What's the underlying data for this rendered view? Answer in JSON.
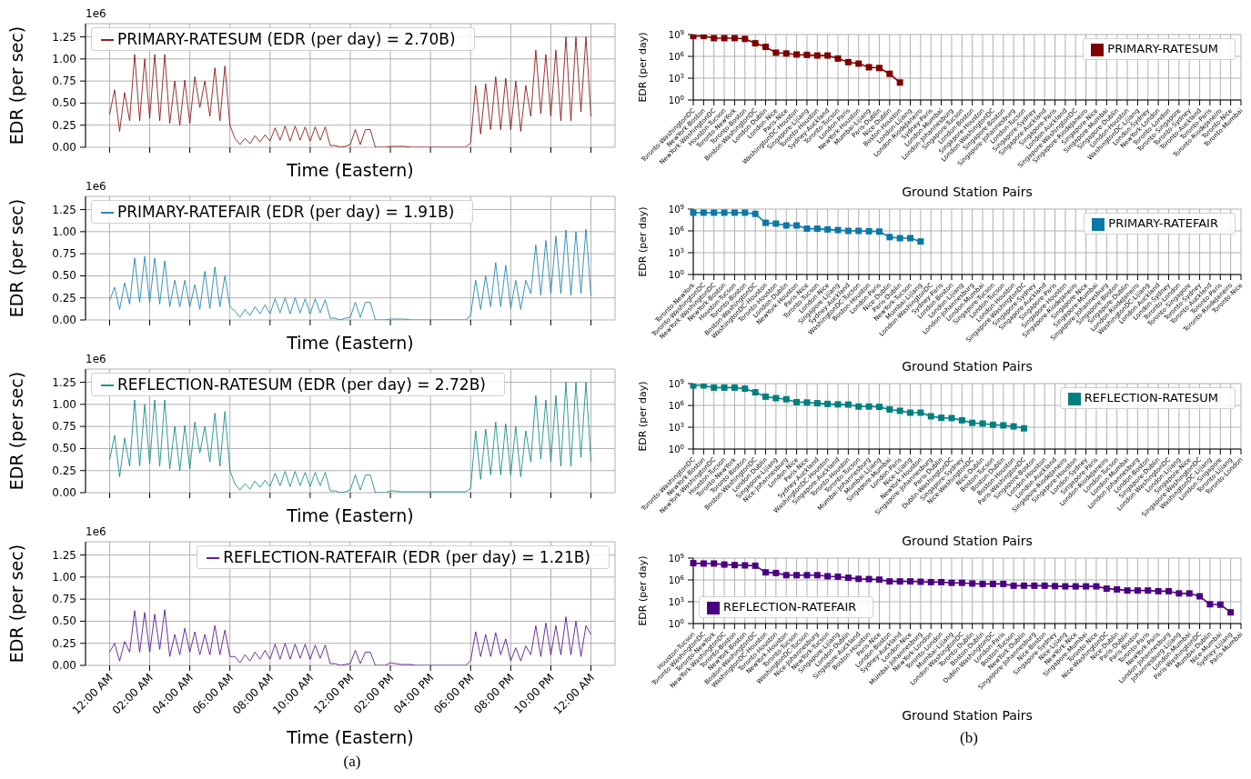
{
  "chart_data": [
    {
      "type": "line",
      "xlabel": "Time (Eastern)",
      "ylabel": "EDR (per sec)",
      "annotations": [
        "1e6"
      ],
      "grid": true,
      "legend": "top left",
      "tick_labels": "y",
      "xlim": [
        -1.2,
        25.2
      ],
      "xticks": [
        {
          "value": 0,
          "label": null
        },
        {
          "value": 2,
          "label": null
        },
        {
          "value": 4,
          "label": null
        },
        {
          "value": 6,
          "label": null
        },
        {
          "value": 8,
          "label": null
        },
        {
          "value": 10,
          "label": null
        },
        {
          "value": 12,
          "label": null
        },
        {
          "value": 14,
          "label": null
        },
        {
          "value": 16,
          "label": null
        },
        {
          "value": 18,
          "label": null
        },
        {
          "value": 20,
          "label": null
        },
        {
          "value": 22,
          "label": null
        },
        {
          "value": 24,
          "label": null
        }
      ],
      "ylim": [
        0,
        1.4
      ],
      "yticks": [
        {
          "value": 0,
          "label": "0.00"
        },
        {
          "value": 0.25,
          "label": "0.25"
        },
        {
          "value": 0.5,
          "label": "0.50"
        },
        {
          "value": 0.75,
          "label": "0.75"
        },
        {
          "value": 1,
          "label": "1.00"
        },
        {
          "value": 1.25,
          "label": "1.25"
        }
      ],
      "x": [
        0,
        0.25,
        0.5,
        0.75,
        1,
        1.25,
        1.5,
        1.75,
        2,
        2.25,
        2.5,
        2.75,
        3,
        3.25,
        3.5,
        3.75,
        4,
        4.25,
        4.5,
        4.75,
        5,
        5.25,
        5.5,
        5.75,
        6,
        6.25,
        6.5,
        6.75,
        7,
        7.25,
        7.5,
        7.75,
        8,
        8.25,
        8.5,
        8.75,
        9,
        9.25,
        9.5,
        9.75,
        10,
        10.25,
        10.5,
        10.75,
        11,
        11.25,
        11.5,
        11.75,
        12,
        12.25,
        12.5,
        12.75,
        13,
        13.25,
        13.5,
        13.75,
        14,
        14.25,
        14.5,
        14.75,
        15,
        15.25,
        15.5,
        15.75,
        16,
        16.25,
        16.5,
        16.75,
        17,
        17.25,
        17.5,
        17.75,
        18,
        18.25,
        18.5,
        18.75,
        19,
        19.25,
        19.5,
        19.75,
        20,
        20.25,
        20.5,
        20.75,
        21,
        21.25,
        21.5,
        21.75,
        22,
        22.25,
        22.5,
        22.75,
        23,
        23.25,
        23.5,
        23.75,
        24
      ],
      "series": [
        {
          "name": "PRIMARY-RATESUM (EDR (per day) = 2.70B)",
          "color": "#800000",
          "values": [
            0.37,
            0.65,
            0.18,
            0.62,
            0.3,
            1.05,
            0.3,
            1.0,
            0.33,
            1.05,
            0.3,
            1.05,
            0.27,
            0.75,
            0.25,
            0.76,
            0.27,
            0.8,
            0.45,
            0.75,
            0.35,
            0.9,
            0.3,
            0.92,
            0.25,
            0.1,
            0.03,
            0.1,
            0.04,
            0.13,
            0.06,
            0.14,
            0.07,
            0.22,
            0.08,
            0.24,
            0.07,
            0.24,
            0.08,
            0.23,
            0.07,
            0.23,
            0.08,
            0.23,
            0.02,
            0.02,
            0,
            0.01,
            0.03,
            0.2,
            0.03,
            0.2,
            0.2,
            0,
            0,
            0,
            0.01,
            0.01,
            0.01,
            0.01,
            0,
            0,
            0,
            0,
            0,
            0,
            0,
            0,
            0,
            0,
            0,
            0,
            0.05,
            0.7,
            0.15,
            0.72,
            0.2,
            0.8,
            0.2,
            0.78,
            0.2,
            0.75,
            0.18,
            0.7,
            0.35,
            1.1,
            0.38,
            1.05,
            0.35,
            1.1,
            0.3,
            1.25,
            0.3,
            1.25,
            0.4,
            1.25,
            0.35
          ]
        }
      ]
    },
    {
      "type": "line",
      "xlabel": "Time (Eastern)",
      "ylabel": "EDR (per sec)",
      "annotations": [
        "1e6"
      ],
      "grid": true,
      "legend": "top left",
      "tick_labels": "y",
      "xlim": [
        -1.2,
        25.2
      ],
      "xticks": [
        {
          "value": 0,
          "label": null
        },
        {
          "value": 2,
          "label": null
        },
        {
          "value": 4,
          "label": null
        },
        {
          "value": 6,
          "label": null
        },
        {
          "value": 8,
          "label": null
        },
        {
          "value": 10,
          "label": null
        },
        {
          "value": 12,
          "label": null
        },
        {
          "value": 14,
          "label": null
        },
        {
          "value": 16,
          "label": null
        },
        {
          "value": 18,
          "label": null
        },
        {
          "value": 20,
          "label": null
        },
        {
          "value": 22,
          "label": null
        },
        {
          "value": 24,
          "label": null
        }
      ],
      "ylim": [
        0,
        1.4
      ],
      "yticks": [
        {
          "value": 0,
          "label": "0.00"
        },
        {
          "value": 0.25,
          "label": "0.25"
        },
        {
          "value": 0.5,
          "label": "0.50"
        },
        {
          "value": 0.75,
          "label": "0.75"
        },
        {
          "value": 1,
          "label": "1.00"
        },
        {
          "value": 1.25,
          "label": "1.25"
        }
      ],
      "x": [
        0,
        0.25,
        0.5,
        0.75,
        1,
        1.25,
        1.5,
        1.75,
        2,
        2.25,
        2.5,
        2.75,
        3,
        3.25,
        3.5,
        3.75,
        4,
        4.25,
        4.5,
        4.75,
        5,
        5.25,
        5.5,
        5.75,
        6,
        6.25,
        6.5,
        6.75,
        7,
        7.25,
        7.5,
        7.75,
        8,
        8.25,
        8.5,
        8.75,
        9,
        9.25,
        9.5,
        9.75,
        10,
        10.25,
        10.5,
        10.75,
        11,
        11.25,
        11.5,
        11.75,
        12,
        12.25,
        12.5,
        12.75,
        13,
        13.25,
        13.5,
        13.75,
        14,
        14.25,
        14.5,
        14.75,
        15,
        15.25,
        15.5,
        15.75,
        16,
        16.25,
        16.5,
        16.75,
        17,
        17.25,
        17.5,
        17.75,
        18,
        18.25,
        18.5,
        18.75,
        19,
        19.25,
        19.5,
        19.75,
        20,
        20.25,
        20.5,
        20.75,
        21,
        21.25,
        21.5,
        21.75,
        22,
        22.25,
        22.5,
        22.75,
        23,
        23.25,
        23.5,
        23.75,
        24
      ],
      "series": [
        {
          "name": "PRIMARY-RATEFAIR (EDR (per day) = 1.91B)",
          "color": "#0a78a8",
          "values": [
            0.22,
            0.37,
            0.12,
            0.42,
            0.18,
            0.7,
            0.2,
            0.72,
            0.2,
            0.7,
            0.18,
            0.67,
            0.15,
            0.45,
            0.15,
            0.45,
            0.15,
            0.4,
            0.12,
            0.55,
            0.13,
            0.6,
            0.15,
            0.5,
            0.15,
            0.1,
            0.03,
            0.12,
            0.05,
            0.15,
            0.07,
            0.17,
            0.07,
            0.24,
            0.08,
            0.25,
            0.07,
            0.25,
            0.08,
            0.24,
            0.07,
            0.24,
            0.08,
            0.23,
            0.02,
            0.02,
            0,
            0.02,
            0.03,
            0.2,
            0.03,
            0.2,
            0.2,
            0,
            0,
            0,
            0.01,
            0.01,
            0.01,
            0.01,
            0,
            0,
            0,
            0,
            0,
            0,
            0,
            0,
            0,
            0,
            0,
            0,
            0.05,
            0.45,
            0.12,
            0.5,
            0.15,
            0.65,
            0.15,
            0.62,
            0.13,
            0.45,
            0.12,
            0.45,
            0.3,
            0.85,
            0.28,
            0.9,
            0.3,
            0.95,
            0.3,
            1.02,
            0.28,
            1.0,
            0.3,
            1.03,
            0.27
          ]
        }
      ]
    },
    {
      "type": "line",
      "xlabel": "Time (Eastern)",
      "ylabel": "EDR (per sec)",
      "annotations": [
        "1e6"
      ],
      "grid": true,
      "legend": "top left",
      "tick_labels": "y",
      "xlim": [
        -1.2,
        25.2
      ],
      "xticks": [
        {
          "value": 0,
          "label": null
        },
        {
          "value": 2,
          "label": null
        },
        {
          "value": 4,
          "label": null
        },
        {
          "value": 6,
          "label": null
        },
        {
          "value": 8,
          "label": null
        },
        {
          "value": 10,
          "label": null
        },
        {
          "value": 12,
          "label": null
        },
        {
          "value": 14,
          "label": null
        },
        {
          "value": 16,
          "label": null
        },
        {
          "value": 18,
          "label": null
        },
        {
          "value": 20,
          "label": null
        },
        {
          "value": 22,
          "label": null
        },
        {
          "value": 24,
          "label": null
        }
      ],
      "ylim": [
        0,
        1.4
      ],
      "yticks": [
        {
          "value": 0,
          "label": "0.00"
        },
        {
          "value": 0.25,
          "label": "0.25"
        },
        {
          "value": 0.5,
          "label": "0.50"
        },
        {
          "value": 0.75,
          "label": "0.75"
        },
        {
          "value": 1,
          "label": "1.00"
        },
        {
          "value": 1.25,
          "label": "1.25"
        }
      ],
      "x": [
        0,
        0.25,
        0.5,
        0.75,
        1,
        1.25,
        1.5,
        1.75,
        2,
        2.25,
        2.5,
        2.75,
        3,
        3.25,
        3.5,
        3.75,
        4,
        4.25,
        4.5,
        4.75,
        5,
        5.25,
        5.5,
        5.75,
        6,
        6.25,
        6.5,
        6.75,
        7,
        7.25,
        7.5,
        7.75,
        8,
        8.25,
        8.5,
        8.75,
        9,
        9.25,
        9.5,
        9.75,
        10,
        10.25,
        10.5,
        10.75,
        11,
        11.25,
        11.5,
        11.75,
        12,
        12.25,
        12.5,
        12.75,
        13,
        13.25,
        13.5,
        13.75,
        14,
        14.25,
        14.5,
        14.75,
        15,
        15.25,
        15.5,
        15.75,
        16,
        16.25,
        16.5,
        16.75,
        17,
        17.25,
        17.5,
        17.75,
        18,
        18.25,
        18.5,
        18.75,
        19,
        19.25,
        19.5,
        19.75,
        20,
        20.25,
        20.5,
        20.75,
        21,
        21.25,
        21.5,
        21.75,
        22,
        22.25,
        22.5,
        22.75,
        23,
        23.25,
        23.5,
        23.75,
        24
      ],
      "series": [
        {
          "name": "REFLECTION-RATESUM (EDR (per day) = 2.72B)",
          "color": "#008080",
          "values": [
            0.37,
            0.65,
            0.18,
            0.62,
            0.3,
            1.05,
            0.3,
            1.0,
            0.33,
            1.05,
            0.3,
            1.05,
            0.27,
            0.75,
            0.25,
            0.76,
            0.27,
            0.8,
            0.45,
            0.75,
            0.35,
            0.9,
            0.3,
            0.92,
            0.25,
            0.1,
            0.03,
            0.1,
            0.04,
            0.13,
            0.06,
            0.14,
            0.07,
            0.22,
            0.08,
            0.24,
            0.07,
            0.24,
            0.08,
            0.23,
            0.07,
            0.23,
            0.08,
            0.23,
            0.02,
            0.02,
            0,
            0.01,
            0.03,
            0.2,
            0.03,
            0.2,
            0.2,
            0,
            0,
            0,
            0.02,
            0.02,
            0.01,
            0.01,
            0.01,
            0.01,
            0.01,
            0.01,
            0.01,
            0.01,
            0.01,
            0.01,
            0.01,
            0.01,
            0.01,
            0.01,
            0.05,
            0.7,
            0.15,
            0.72,
            0.2,
            0.8,
            0.2,
            0.78,
            0.2,
            0.75,
            0.18,
            0.7,
            0.35,
            1.1,
            0.38,
            1.05,
            0.35,
            1.1,
            0.3,
            1.25,
            0.3,
            1.25,
            0.4,
            1.25,
            0.35
          ]
        }
      ]
    },
    {
      "type": "line",
      "xlabel": "Time (Eastern)",
      "ylabel": "EDR (per sec)",
      "annotations": [
        "1e6",
        "(a)"
      ],
      "grid": true,
      "legend": "top right",
      "xlim": [
        -1.2,
        25.2
      ],
      "xticks": [
        {
          "value": 0,
          "label": "12:00 AM"
        },
        {
          "value": 2,
          "label": "02:00 AM"
        },
        {
          "value": 4,
          "label": "04:00 AM"
        },
        {
          "value": 6,
          "label": "06:00 AM"
        },
        {
          "value": 8,
          "label": "08:00 AM"
        },
        {
          "value": 10,
          "label": "10:00 AM"
        },
        {
          "value": 12,
          "label": "12:00 PM"
        },
        {
          "value": 14,
          "label": "02:00 PM"
        },
        {
          "value": 16,
          "label": "04:00 PM"
        },
        {
          "value": 18,
          "label": "06:00 PM"
        },
        {
          "value": 20,
          "label": "08:00 PM"
        },
        {
          "value": 22,
          "label": "10:00 PM"
        },
        {
          "value": 24,
          "label": "12:00 AM"
        }
      ],
      "ylim": [
        0,
        1.4
      ],
      "yticks": [
        {
          "value": 0,
          "label": "0.00"
        },
        {
          "value": 0.25,
          "label": "0.25"
        },
        {
          "value": 0.5,
          "label": "0.50"
        },
        {
          "value": 0.75,
          "label": "0.75"
        },
        {
          "value": 1,
          "label": "1.00"
        },
        {
          "value": 1.25,
          "label": "1.25"
        }
      ],
      "x": [
        0,
        0.25,
        0.5,
        0.75,
        1,
        1.25,
        1.5,
        1.75,
        2,
        2.25,
        2.5,
        2.75,
        3,
        3.25,
        3.5,
        3.75,
        4,
        4.25,
        4.5,
        4.75,
        5,
        5.25,
        5.5,
        5.75,
        6,
        6.25,
        6.5,
        6.75,
        7,
        7.25,
        7.5,
        7.75,
        8,
        8.25,
        8.5,
        8.75,
        9,
        9.25,
        9.5,
        9.75,
        10,
        10.25,
        10.5,
        10.75,
        11,
        11.25,
        11.5,
        11.75,
        12,
        12.25,
        12.5,
        12.75,
        13,
        13.25,
        13.5,
        13.75,
        14,
        14.25,
        14.5,
        14.75,
        15,
        15.25,
        15.5,
        15.75,
        16,
        16.25,
        16.5,
        16.75,
        17,
        17.25,
        17.5,
        17.75,
        18,
        18.25,
        18.5,
        18.75,
        19,
        19.25,
        19.5,
        19.75,
        20,
        20.25,
        20.5,
        20.75,
        21,
        21.25,
        21.5,
        21.75,
        22,
        22.25,
        22.5,
        22.75,
        23,
        23.25,
        23.5,
        23.75,
        24
      ],
      "series": [
        {
          "name": "REFLECTION-RATEFAIR (EDR (per day) = 1.21B)",
          "color": "#4b0082",
          "values": [
            0.15,
            0.25,
            0.05,
            0.27,
            0.15,
            0.62,
            0.15,
            0.6,
            0.15,
            0.58,
            0.18,
            0.63,
            0.1,
            0.35,
            0.12,
            0.42,
            0.15,
            0.38,
            0.12,
            0.35,
            0.12,
            0.45,
            0.12,
            0.4,
            0.1,
            0.1,
            0.03,
            0.12,
            0.05,
            0.15,
            0.07,
            0.17,
            0.07,
            0.24,
            0.07,
            0.25,
            0.07,
            0.24,
            0.08,
            0.24,
            0.07,
            0.23,
            0.08,
            0.23,
            0.02,
            0.02,
            0,
            0.01,
            0.02,
            0.17,
            0.02,
            0.15,
            0.15,
            0,
            0,
            0,
            0.03,
            0.02,
            0.01,
            0.01,
            0.01,
            0,
            0,
            0,
            0,
            0,
            0,
            0,
            0,
            0,
            0,
            0,
            0.05,
            0.38,
            0.1,
            0.35,
            0.1,
            0.37,
            0.12,
            0.3,
            0.05,
            0.2,
            0.05,
            0.22,
            0.12,
            0.45,
            0.1,
            0.48,
            0.12,
            0.45,
            0.12,
            0.55,
            0.12,
            0.5,
            0.1,
            0.45,
            0.35
          ]
        }
      ]
    },
    {
      "type": "line",
      "xlabel": "Ground Station Pairs",
      "ylabel": "EDR (per day)",
      "grid": true,
      "legend": "top right",
      "log": true,
      "marker": "square",
      "ylim": [
        1,
        1000000000
      ],
      "yticks": [
        {
          "value": 1,
          "label": "10$^{0}$"
        },
        {
          "value": 1000,
          "label": "10$^{3}$"
        },
        {
          "value": 1000000,
          "label": "10$^{6}$"
        },
        {
          "value": 1000000000,
          "label": "10$^{9}$"
        }
      ],
      "categories": [
        "Toronto-WashingtonDC",
        "NewYork-Boston",
        "NewYork-WashingtonDC",
        "Houston-Tucson",
        "Toronto-NewYork",
        "Toronto-Boston",
        "Boston-WashingtonDC",
        "London-Dublin",
        "London-Nice",
        "Paris-Nice",
        "WashingtonDC-Houston",
        "Singapore-Lijiang",
        "Toronto-Houston",
        "Sydney-Auckland",
        "Toronto-Tucson",
        "London-Paris",
        "NewYork-Houston",
        "Mumbai-Lijiang",
        "Paris-Dublin",
        "Nice-Dublin",
        "Boston-Houston",
        "London-Lijiang",
        "London-RiodeJaneiro",
        "Sydney-Paris",
        "London-Mumbai",
        "London-Johannesburg",
        "Singapore-Tucson",
        "London-Boston",
        "Singapore-Houston",
        "London-WashingtonDC",
        "Singapore-Boston",
        "Singapore-Johannesburg",
        "London-Tucson",
        "Singapore-Sydney",
        "Singapore-Auckland",
        "Singapore-Paris",
        "London-Auckland",
        "Singapore-WashingtonDC",
        "Singapore-RiodeJaneiro",
        "Singapore-Nice",
        "Singapore-Mumbai",
        "Singapore-Dublin",
        "London-Houston",
        "WashingtonDC-Lijiang",
        "London-Sydney",
        "NewYork-London",
        "Toronto-London",
        "Toronto-Singapore",
        "Toronto-Sydney",
        "Toronto-Auckland",
        "Toronto-Paris",
        "Toronto-RiodeJaneiro",
        "Toronto-Nice",
        "Toronto-Mumbai"
      ],
      "series": [
        {
          "name": "PRIMARY-RATESUM",
          "color": "#800000",
          "values": [
            630000000,
            630000000,
            320000000,
            320000000,
            320000000,
            250000000,
            63000000,
            20000000,
            3200000,
            2500000,
            1800000,
            1600000,
            1300000,
            1300000,
            500000,
            160000,
            100000,
            32000,
            25000,
            4000,
            250,
            null,
            null,
            null,
            null,
            null,
            null,
            null,
            null,
            null,
            null,
            null,
            null,
            null,
            null,
            null,
            null,
            null,
            null,
            null,
            null,
            null,
            null,
            null,
            null,
            null,
            null,
            null,
            null,
            null,
            null,
            null,
            null,
            null
          ]
        }
      ]
    },
    {
      "type": "line",
      "xlabel": "Ground Station Pairs",
      "ylabel": "EDR (per day)",
      "grid": true,
      "legend": "top right",
      "log": true,
      "marker": "square",
      "ylim": [
        1,
        1000000000
      ],
      "yticks": [
        {
          "value": 1,
          "label": "10$^{0}$"
        },
        {
          "value": 1000,
          "label": "10$^{3}$"
        },
        {
          "value": 1000000,
          "label": "10$^{6}$"
        },
        {
          "value": 1000000000,
          "label": "10$^{9}$"
        }
      ],
      "categories": [
        "Toronto-NewYork",
        "Toronto-WashingtonDC",
        "NewYork-WashingtonDC",
        "NewYork-Boston",
        "Houston-Tucson",
        "Toronto-Boston",
        "Boston-WashingtonDC",
        "WashingtonDC-Houston",
        "Toronto-Houston",
        "London-Dublin",
        "NewYork-Houston",
        "Paris-Nice",
        "Toronto-Tucson",
        "London-Nice",
        "Singapore-Lijiang",
        "Sydney-Auckland",
        "WashingtonDC-Tucson",
        "Boston-Houston",
        "London-Paris",
        "Nice-Dublin",
        "Paris-Dublin",
        "NewYork-Tucson",
        "Mumbai-Lijiang",
        "London-WashingtonDC",
        "Sydney-Paris",
        "London-Boston",
        "London-Lijiang",
        "London-Johannesburg",
        "London-Mumbai",
        "Singapore-Tucson",
        "London-Tucson",
        "London-Houston",
        "Singapore-WashingtonDC",
        "Singapore-Sydney",
        "Singapore-Auckland",
        "Singapore-Paris",
        "Singapore-Houston",
        "Singapore-RiodeJaneiro",
        "Singapore-Nice",
        "Singapore-Mumbai",
        "Singapore-Johannesburg",
        "Singapore-Boston",
        "Singapore-Dublin",
        "London-RiodeJaneiro",
        "WashingtonDC-Lijiang",
        "London-Auckland",
        "London-Sydney",
        "Toronto-London",
        "Toronto-Singapore",
        "Toronto-Sydney",
        "Toronto-Auckland",
        "Toronto-Paris",
        "Toronto-RiodeJaneiro",
        "Toronto-Nice"
      ],
      "series": [
        {
          "name": "PRIMARY-RATEFAIR",
          "color": "#0a78a8",
          "values": [
            320000000,
            320000000,
            320000000,
            320000000,
            320000000,
            320000000,
            220000000,
            13000000,
            10000000,
            5600000,
            5600000,
            2000000,
            2000000,
            1600000,
            1300000,
            1000000,
            1000000,
            900000,
            800000,
            140000,
            100000,
            100000,
            35000,
            null,
            null,
            null,
            null,
            null,
            null,
            null,
            null,
            null,
            null,
            null,
            null,
            null,
            null,
            null,
            null,
            null,
            null,
            null,
            null,
            null,
            null,
            null,
            null,
            null,
            null,
            null,
            null,
            null,
            null,
            null
          ]
        }
      ]
    },
    {
      "type": "line",
      "xlabel": "Ground Station Pairs",
      "ylabel": "EDR (per day)",
      "grid": true,
      "legend": "top right",
      "log": true,
      "marker": "square",
      "ylim": [
        1,
        1000000000
      ],
      "yticks": [
        {
          "value": 1,
          "label": "10$^{0}$"
        },
        {
          "value": 1000,
          "label": "10$^{3}$"
        },
        {
          "value": 1000000,
          "label": "10$^{6}$"
        },
        {
          "value": 1000000000,
          "label": "10$^{9}$"
        }
      ],
      "categories": [
        "Toronto-WashingtonDC",
        "NewYork-Boston",
        "NewYork-WashingtonDC",
        "Houston-Tucson",
        "Toronto-NewYork",
        "Toronto-Boston",
        "Boston-WashingtonDC",
        "London-Dublin",
        "Singapore-Lijiang",
        "Nice-Johannesburg",
        "London-Nice",
        "Paris-Nice",
        "Sydney-Auckland",
        "WashingtonDC-Houston",
        "Singapore-Auckland",
        "Toronto-Houston",
        "Toronto-Tucson",
        "Mumbai-Johannesburg",
        "Mumbai-Lijiang",
        "Singapore-Mumbai",
        "London-Paris",
        "Nice-Lijiang",
        "NewYork-Houston",
        "Singapore-Johannesburg",
        "Paris-Dublin",
        "Dublin-WashingtonDC",
        "Singapore-Sydney",
        "Nice-WashingtonDC",
        "Nice-Dublin",
        "Boston-Tucson",
        "Boston-Dublin",
        "Boston-Houston",
        "Paris-WashingtonDC",
        "Singapore-Boston",
        "London-Houston",
        "London-Auckland",
        "Singapore-RiodeJaneiro",
        "Singapore-Houston",
        "London-Sydney",
        "Singapore-Paris",
        "London-RiodeJaneiro",
        "London-Tucson",
        "London-Mumbai",
        "London-Johannesburg",
        "London-Boston",
        "Singapore-Dublin",
        "London-WashingtonDC",
        "London-Lijiang",
        "Singapore-Nice",
        "Singapore-WashingtonDC",
        "WashingtonDC-Lijiang",
        "London-Singapore",
        "Toronto-Lijiang",
        "Toronto-London"
      ],
      "series": [
        {
          "name": "REFLECTION-RATESUM",
          "color": "#008080",
          "values": [
            560000000,
            560000000,
            280000000,
            280000000,
            280000000,
            200000000,
            63000000,
            16000000,
            10000000,
            7000000,
            2800000,
            2500000,
            2000000,
            1600000,
            1400000,
            1300000,
            700000,
            700000,
            630000,
            280000,
            180000,
            100000,
            100000,
            32000,
            20000,
            18000,
            9000,
            4000,
            3200,
            2200,
            1800,
            1300,
            700,
            null,
            null,
            null,
            null,
            null,
            null,
            null,
            null,
            null,
            null,
            null,
            null,
            null,
            null,
            null,
            null,
            null,
            null,
            null,
            null,
            null
          ]
        }
      ]
    },
    {
      "type": "line",
      "xlabel": "Ground Station Pairs",
      "ylabel": "EDR (per day)",
      "annotations": [
        "(b)"
      ],
      "grid": true,
      "legend": "bottom left",
      "log": true,
      "marker": "square",
      "ylim": [
        1,
        1000000000
      ],
      "yticks": [
        {
          "value": 1,
          "label": "10$^{0}$"
        },
        {
          "value": 1000,
          "label": "10$^{3}$"
        },
        {
          "value": 1000000,
          "label": "10$^{6}$"
        },
        {
          "value": 1000000000,
          "label": "10$^{9}$"
        }
      ],
      "categories": [
        "Houston-Tucson",
        "Toronto-WashingtonDC",
        "Toronto-NewYork",
        "NewYork-WashingtonDC",
        "Toronto-Boston",
        "NewYork-Boston",
        "Boston-WashingtonDC",
        "WashingtonDC-Houston",
        "Toronto-Houston",
        "NewYork-Houston",
        "Toronto-Tucson",
        "WashingtonDC-Tucson",
        "Nice-Johannesburg",
        "NewYork-Tucson",
        "Singapore-Lijiang",
        "London-Dublin",
        "Singapore-Auckland",
        "Boston-Houston",
        "Paris-Nice",
        "London-Boston",
        "Sydney-Auckland",
        "London-Nice",
        "Mumbai-Johannesburg",
        "NewYork-London",
        "Toronto-London",
        "Mumbai-Lijiang",
        "London-WashingtonDC",
        "Toronto-Dublin",
        "Boston-Dublin",
        "Dublin-WashingtonDC",
        "London-Paris",
        "Boston-Tucson",
        "NewYork-Dublin",
        "Singapore-Johannesburg",
        "Nice-Boston",
        "Singapore-Sydney",
        "Nice-Lijiang",
        "NewYork-Nice",
        "Singapore-Mumbai",
        "Toronto-Nice",
        "Nice-WashingtonDC",
        "Nice-Dublin",
        "Paris-Dublin",
        "Paris-Boston",
        "Toronto-Paris",
        "NewYork-Paris",
        "London-Johannesburg",
        "Johannesburg-Lijiang",
        "London-Mumbai",
        "Paris-WashingtonDC",
        "Mumbai-Dublin",
        "Nice-Mumbai",
        "Sydney-Lijiang",
        "Paris-Mumbai"
      ],
      "series": [
        {
          "name": "REFLECTION-RATEFAIR",
          "color": "#4b0082",
          "values": [
            200000000,
            180000000,
            180000000,
            130000000,
            110000000,
            100000000,
            90000000,
            11000000,
            9000000,
            4500000,
            4500000,
            4500000,
            4500000,
            3200000,
            2800000,
            2000000,
            1400000,
            1300000,
            1100000,
            630000,
            630000,
            630000,
            560000,
            500000,
            500000,
            400000,
            400000,
            320000,
            280000,
            280000,
            280000,
            160000,
            160000,
            160000,
            160000,
            140000,
            130000,
            130000,
            130000,
            130000,
            63000,
            50000,
            35000,
            35000,
            35000,
            28000,
            28000,
            14000,
            14000,
            5600,
            450,
            400,
            35,
            null
          ]
        }
      ]
    }
  ]
}
